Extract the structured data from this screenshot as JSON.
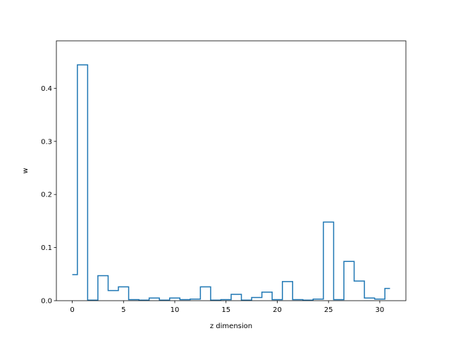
{
  "chart_data": {
    "type": "line",
    "drawstyle": "steps-mid",
    "xlabel": "z dimension",
    "ylabel": "w",
    "xlim": [
      -1.55,
      32.55
    ],
    "ylim": [
      0,
      0.4893
    ],
    "xticks": [
      0,
      5,
      10,
      15,
      20,
      25,
      30
    ],
    "yticks": [
      0.0,
      0.1,
      0.2,
      0.3,
      0.4
    ],
    "xtick_labels": [
      "0",
      "5",
      "10",
      "15",
      "20",
      "25",
      "30"
    ],
    "ytick_labels": [
      "0.0",
      "0.1",
      "0.2",
      "0.3",
      "0.4"
    ],
    "grid": false,
    "series": [
      {
        "color": "#1f77b4",
        "x": [
          0,
          1,
          2,
          3,
          4,
          5,
          6,
          7,
          8,
          9,
          10,
          11,
          12,
          13,
          14,
          15,
          16,
          17,
          18,
          19,
          20,
          21,
          22,
          23,
          24,
          25,
          26,
          27,
          28,
          29,
          30,
          31
        ],
        "y": [
          0.049,
          0.444,
          0.001,
          0.047,
          0.019,
          0.026,
          0.002,
          0.001,
          0.005,
          0.001,
          0.005,
          0.002,
          0.003,
          0.026,
          0.001,
          0.002,
          0.012,
          0.001,
          0.006,
          0.016,
          0.002,
          0.036,
          0.002,
          0.001,
          0.003,
          0.148,
          0.002,
          0.074,
          0.037,
          0.005,
          0.003,
          0.023
        ]
      }
    ]
  }
}
